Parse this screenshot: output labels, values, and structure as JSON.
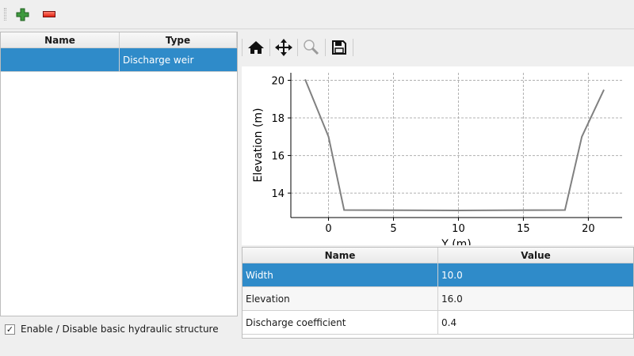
{
  "toolbar": {
    "add_icon": "plus-icon",
    "remove_icon": "minus-icon"
  },
  "structures_table": {
    "columns": [
      "Name",
      "Type"
    ],
    "rows": [
      {
        "name": "",
        "type": "Discharge weir",
        "selected": true
      }
    ]
  },
  "enable_checkbox": {
    "label": "Enable / Disable basic hydraulic structure",
    "checked": true
  },
  "plot_toolbar": {
    "icons": [
      "home-icon",
      "pan-icon",
      "zoom-icon",
      "save-icon"
    ]
  },
  "properties_table": {
    "columns": [
      "Name",
      "Value"
    ],
    "rows": [
      {
        "name": "Width",
        "value": "10.0",
        "selected": true
      },
      {
        "name": "Elevation",
        "value": "16.0"
      },
      {
        "name": "Discharge coefficient",
        "value": "0.4"
      }
    ]
  },
  "chart_data": {
    "type": "line",
    "xlabel": "Y (m)",
    "ylabel": "Elevation (m)",
    "xlim": [
      -2.9,
      22.6
    ],
    "ylim": [
      12.7,
      20.4
    ],
    "xticks": [
      0,
      5,
      10,
      15,
      20
    ],
    "yticks": [
      14,
      16,
      18,
      20
    ],
    "grid": true,
    "series": [
      {
        "color": "#808080",
        "x": [
          -1.8,
          0,
          1.2,
          10,
          18.2,
          19.5,
          21.2
        ],
        "y": [
          20.05,
          17,
          13.1,
          13.08,
          13.1,
          17,
          19.5
        ]
      }
    ]
  }
}
